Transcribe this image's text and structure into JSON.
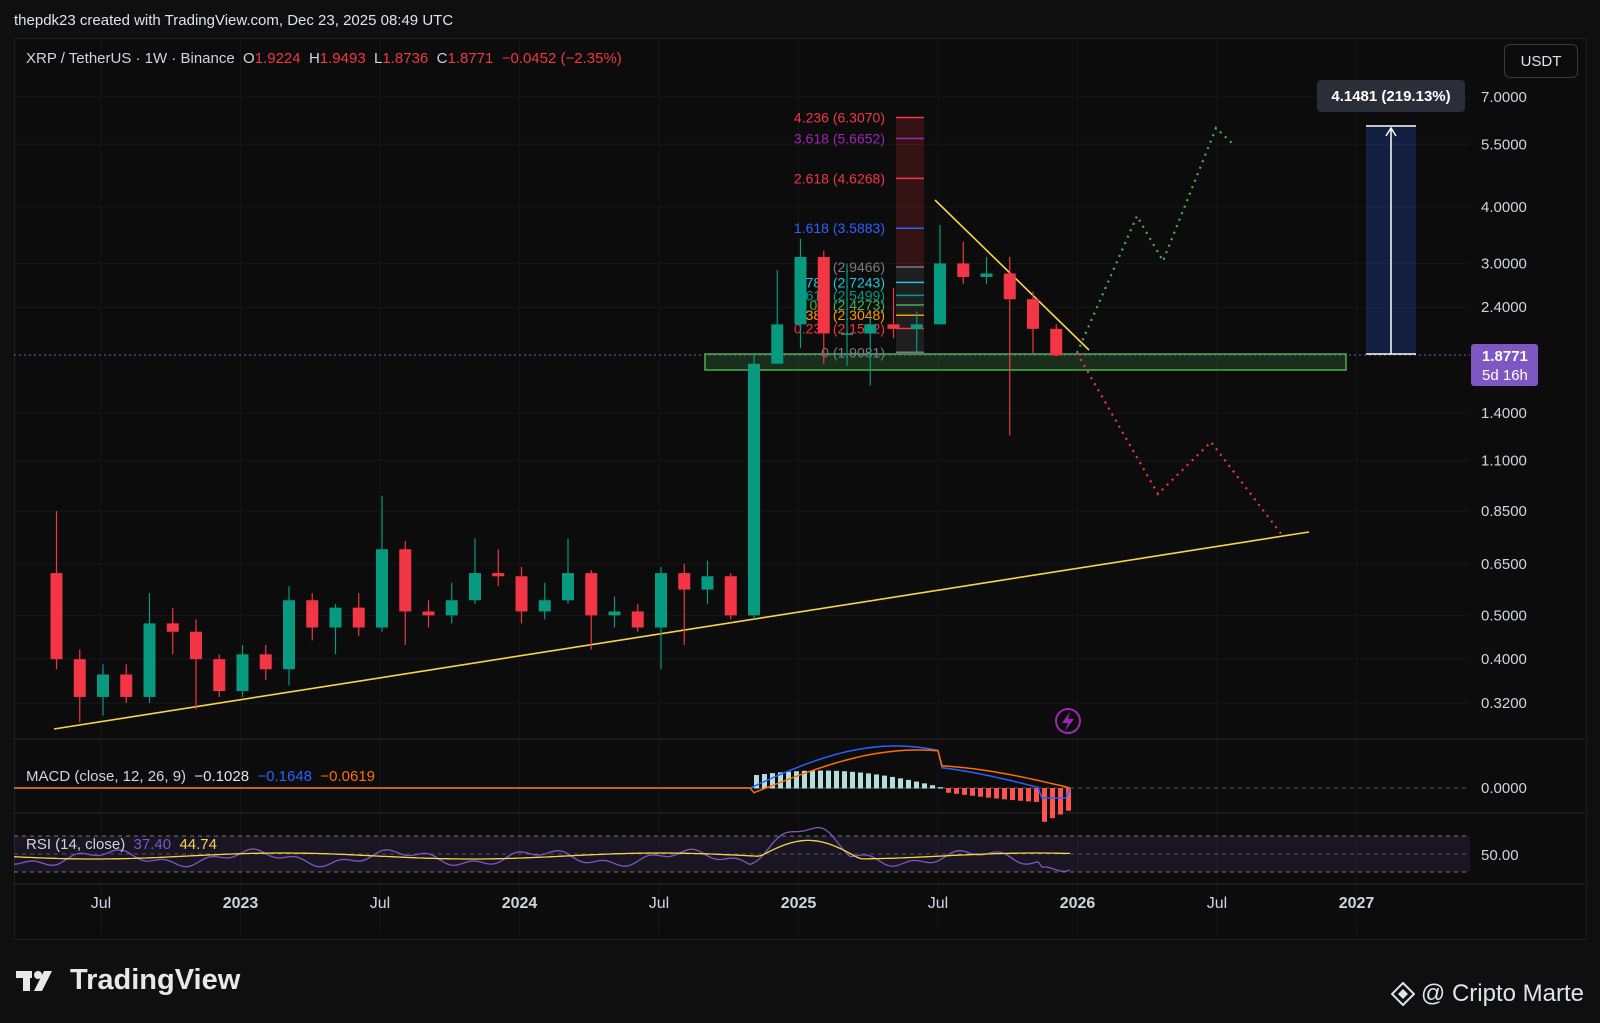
{
  "header": {
    "created_line": "thepdk23 created with TradingView.com, Dec 23, 2025 08:49 UTC"
  },
  "legend": {
    "symbol": "XRP / TetherUS · 1W · Binance",
    "o_label": "O",
    "o": "1.9224",
    "h_label": "H",
    "h": "1.9493",
    "l_label": "L",
    "l": "1.8736",
    "c_label": "C",
    "c": "1.8771",
    "change": "−0.0452 (−2.35%)"
  },
  "unit_button": "USDT",
  "price_axis": {
    "labels": [
      "7.0000",
      "5.5000",
      "4.0000",
      "3.0000",
      "2.4000",
      "1.4000",
      "1.1000",
      "0.8500",
      "0.6500",
      "0.5000",
      "0.4000",
      "0.3200"
    ],
    "current_price": "1.8771",
    "countdown": "5d 16h",
    "measure_label": "4.1481 (219.13%)"
  },
  "time_axis": [
    "Jul",
    "2023",
    "Jul",
    "2024",
    "Jul",
    "2025",
    "Jul",
    "2026",
    "Jul",
    "2027"
  ],
  "fib_levels": [
    {
      "text": "4.236 (6.3070)",
      "color": "#f23645"
    },
    {
      "text": "3.618 (5.6652)",
      "color": "#9c27b0"
    },
    {
      "text": "2.618 (4.6268)",
      "color": "#f23645"
    },
    {
      "text": "1.618 (3.5883)",
      "color": "#2962ff"
    },
    {
      "text": "1 (2.9466)",
      "color": "#787b86"
    },
    {
      "text": "0.786 (2.7243)",
      "color": "#26c6da"
    },
    {
      "text": "0.618 (2.5499)",
      "color": "#089981"
    },
    {
      "text": "0.5 (2.4273)",
      "color": "#4caf50"
    },
    {
      "text": "0.382 (2.3048)",
      "color": "#ff9800"
    },
    {
      "text": "0.236 (2.1532)",
      "color": "#f23645"
    },
    {
      "text": "0 (1.9081)",
      "color": "#787b86"
    }
  ],
  "macd": {
    "title": "MACD (close, 12, 26, 9)",
    "macd": "−0.1028",
    "signal": "−0.1648",
    "hist": "−0.0619",
    "axis_label": "0.0000"
  },
  "rsi": {
    "title": "RSI (14, close)",
    "rsi": "37.40",
    "ma": "44.74",
    "axis_label": "50.00"
  },
  "footer": {
    "brand": "TradingView",
    "credit": "@ Cripto Marte"
  },
  "colors": {
    "up": "#089981",
    "down": "#f23645",
    "trend": "#f7d54a",
    "zone": "#4caf50",
    "bull_path": "#4caf50",
    "bear_path": "#f23645",
    "price_tag": "#7e57c2"
  },
  "chart_data": {
    "type": "candlestick",
    "scale": "log",
    "ylim": [
      0.27,
      7.6
    ],
    "x_range": [
      "2022-05",
      "2027-04"
    ],
    "candles_monthly_approx": [
      {
        "t": "2022-05",
        "o": 0.62,
        "h": 0.85,
        "l": 0.38,
        "c": 0.4
      },
      {
        "t": "2022-06",
        "o": 0.4,
        "h": 0.42,
        "l": 0.29,
        "c": 0.33
      },
      {
        "t": "2022-07",
        "o": 0.33,
        "h": 0.39,
        "l": 0.3,
        "c": 0.37
      },
      {
        "t": "2022-08",
        "o": 0.37,
        "h": 0.39,
        "l": 0.32,
        "c": 0.33
      },
      {
        "t": "2022-09",
        "o": 0.33,
        "h": 0.56,
        "l": 0.32,
        "c": 0.48
      },
      {
        "t": "2022-10",
        "o": 0.48,
        "h": 0.52,
        "l": 0.41,
        "c": 0.46
      },
      {
        "t": "2022-11",
        "o": 0.46,
        "h": 0.49,
        "l": 0.31,
        "c": 0.4
      },
      {
        "t": "2022-12",
        "o": 0.4,
        "h": 0.41,
        "l": 0.33,
        "c": 0.34
      },
      {
        "t": "2023-01",
        "o": 0.34,
        "h": 0.43,
        "l": 0.33,
        "c": 0.41
      },
      {
        "t": "2023-02",
        "o": 0.41,
        "h": 0.43,
        "l": 0.36,
        "c": 0.38
      },
      {
        "t": "2023-03",
        "o": 0.38,
        "h": 0.58,
        "l": 0.35,
        "c": 0.54
      },
      {
        "t": "2023-04",
        "o": 0.54,
        "h": 0.56,
        "l": 0.44,
        "c": 0.47
      },
      {
        "t": "2023-05",
        "o": 0.47,
        "h": 0.53,
        "l": 0.41,
        "c": 0.52
      },
      {
        "t": "2023-06",
        "o": 0.52,
        "h": 0.56,
        "l": 0.45,
        "c": 0.47
      },
      {
        "t": "2023-07",
        "o": 0.47,
        "h": 0.92,
        "l": 0.46,
        "c": 0.7
      },
      {
        "t": "2023-08",
        "o": 0.7,
        "h": 0.73,
        "l": 0.43,
        "c": 0.51
      },
      {
        "t": "2023-09",
        "o": 0.51,
        "h": 0.54,
        "l": 0.47,
        "c": 0.5
      },
      {
        "t": "2023-10",
        "o": 0.5,
        "h": 0.59,
        "l": 0.48,
        "c": 0.54
      },
      {
        "t": "2023-11",
        "o": 0.54,
        "h": 0.74,
        "l": 0.53,
        "c": 0.62
      },
      {
        "t": "2023-12",
        "o": 0.62,
        "h": 0.7,
        "l": 0.58,
        "c": 0.61
      },
      {
        "t": "2024-01",
        "o": 0.61,
        "h": 0.64,
        "l": 0.48,
        "c": 0.51
      },
      {
        "t": "2024-02",
        "o": 0.51,
        "h": 0.59,
        "l": 0.49,
        "c": 0.54
      },
      {
        "t": "2024-03",
        "o": 0.54,
        "h": 0.74,
        "l": 0.53,
        "c": 0.62
      },
      {
        "t": "2024-04",
        "o": 0.62,
        "h": 0.63,
        "l": 0.42,
        "c": 0.5
      },
      {
        "t": "2024-05",
        "o": 0.5,
        "h": 0.55,
        "l": 0.47,
        "c": 0.51
      },
      {
        "t": "2024-06",
        "o": 0.51,
        "h": 0.53,
        "l": 0.46,
        "c": 0.47
      },
      {
        "t": "2024-07",
        "o": 0.47,
        "h": 0.64,
        "l": 0.38,
        "c": 0.62
      },
      {
        "t": "2024-08",
        "o": 0.62,
        "h": 0.65,
        "l": 0.43,
        "c": 0.57
      },
      {
        "t": "2024-09",
        "o": 0.57,
        "h": 0.66,
        "l": 0.53,
        "c": 0.61
      },
      {
        "t": "2024-10",
        "o": 0.61,
        "h": 0.62,
        "l": 0.49,
        "c": 0.5
      },
      {
        "t": "2024-11",
        "o": 0.5,
        "h": 1.9,
        "l": 0.49,
        "c": 1.8
      },
      {
        "t": "2024-12",
        "o": 1.8,
        "h": 2.9,
        "l": 1.9,
        "c": 2.2
      },
      {
        "t": "2025-01",
        "o": 2.2,
        "h": 3.4,
        "l": 1.95,
        "c": 3.1
      },
      {
        "t": "2025-02",
        "o": 3.1,
        "h": 3.2,
        "l": 1.8,
        "c": 2.1
      },
      {
        "t": "2025-03",
        "o": 2.1,
        "h": 3.0,
        "l": 1.78,
        "c": 2.1
      },
      {
        "t": "2025-04",
        "o": 2.1,
        "h": 2.3,
        "l": 1.61,
        "c": 2.2
      },
      {
        "t": "2025-05",
        "o": 2.2,
        "h": 2.65,
        "l": 2.05,
        "c": 2.15
      },
      {
        "t": "2025-06",
        "o": 2.15,
        "h": 2.35,
        "l": 1.9,
        "c": 2.2
      },
      {
        "t": "2025-07",
        "o": 2.2,
        "h": 3.65,
        "l": 2.2,
        "c": 3.0
      },
      {
        "t": "2025-08",
        "o": 3.0,
        "h": 3.35,
        "l": 2.7,
        "c": 2.8
      },
      {
        "t": "2025-09",
        "o": 2.8,
        "h": 3.1,
        "l": 2.7,
        "c": 2.85
      },
      {
        "t": "2025-10",
        "o": 2.85,
        "h": 3.1,
        "l": 1.25,
        "c": 2.5
      },
      {
        "t": "2025-11",
        "o": 2.5,
        "h": 2.6,
        "l": 1.9,
        "c": 2.15
      },
      {
        "t": "2025-12",
        "o": 2.15,
        "h": 2.2,
        "l": 1.87,
        "c": 1.8771
      }
    ]
  }
}
